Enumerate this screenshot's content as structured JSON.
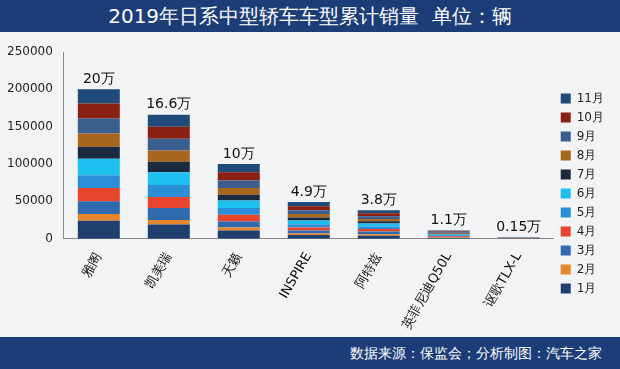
{
  "chart_data": {
    "type": "bar",
    "title": "2019年日系中型轿车车型累计销量  单位：辆",
    "subtitle": "数据来源：保监会；分析制图：汽车之家",
    "categories": [
      "雅阁",
      "凯美瑞",
      "天籁",
      "INSPIRE",
      "阿特兹",
      "英菲尼迪Q50L",
      "讴歌TLX-L"
    ],
    "series": [
      {
        "name": "1月",
        "color": "#1f3f6e",
        "values": [
          24000,
          19000,
          11000,
          5000,
          4000,
          1000,
          0
        ]
      },
      {
        "name": "2月",
        "color": "#e8862b",
        "values": [
          9000,
          6000,
          4000,
          2000,
          2000,
          600,
          0
        ]
      },
      {
        "name": "3月",
        "color": "#2e6aad",
        "values": [
          17000,
          16000,
          8000,
          4000,
          3500,
          900,
          0
        ]
      },
      {
        "name": "4月",
        "color": "#e8452c",
        "values": [
          18000,
          15000,
          9000,
          4000,
          3500,
          1000,
          0
        ]
      },
      {
        "name": "5月",
        "color": "#2b8fd8",
        "values": [
          17000,
          16000,
          9000,
          4500,
          3500,
          1000,
          0
        ]
      },
      {
        "name": "6月",
        "color": "#1ec0f0",
        "values": [
          22000,
          17000,
          10000,
          5000,
          4000,
          1100,
          0
        ]
      },
      {
        "name": "7月",
        "color": "#1c2a40",
        "values": [
          16000,
          14000,
          8000,
          4000,
          3000,
          900,
          100
        ]
      },
      {
        "name": "8月",
        "color": "#a8671f",
        "values": [
          18000,
          15000,
          9000,
          4500,
          3000,
          1000,
          200
        ]
      },
      {
        "name": "9月",
        "color": "#3a5f8f",
        "values": [
          20000,
          16000,
          10000,
          5000,
          3500,
          1100,
          300
        ]
      },
      {
        "name": "10月",
        "color": "#8a1f13",
        "values": [
          20000,
          16000,
          11000,
          5500,
          4000,
          1200,
          400
        ]
      },
      {
        "name": "11月",
        "color": "#1f4a7a",
        "values": [
          19000,
          16000,
          11000,
          5500,
          4000,
          1200,
          500
        ]
      }
    ],
    "annotations": [
      {
        "category": "雅阁",
        "text": "20万"
      },
      {
        "category": "凯美瑞",
        "text": "16.6万"
      },
      {
        "category": "天籁",
        "text": "10万"
      },
      {
        "category": "INSPIRE",
        "text": "4.9万"
      },
      {
        "category": "阿特兹",
        "text": "3.8万"
      },
      {
        "category": "英菲尼迪Q50L",
        "text": "1.1万"
      },
      {
        "category": "讴歌TLX-L",
        "text": "0.15万"
      }
    ],
    "ylim": [
      0,
      250000
    ],
    "yticks": [
      0,
      50000,
      100000,
      150000,
      200000,
      250000
    ],
    "stacked": true,
    "grid": false,
    "legend": "right"
  }
}
